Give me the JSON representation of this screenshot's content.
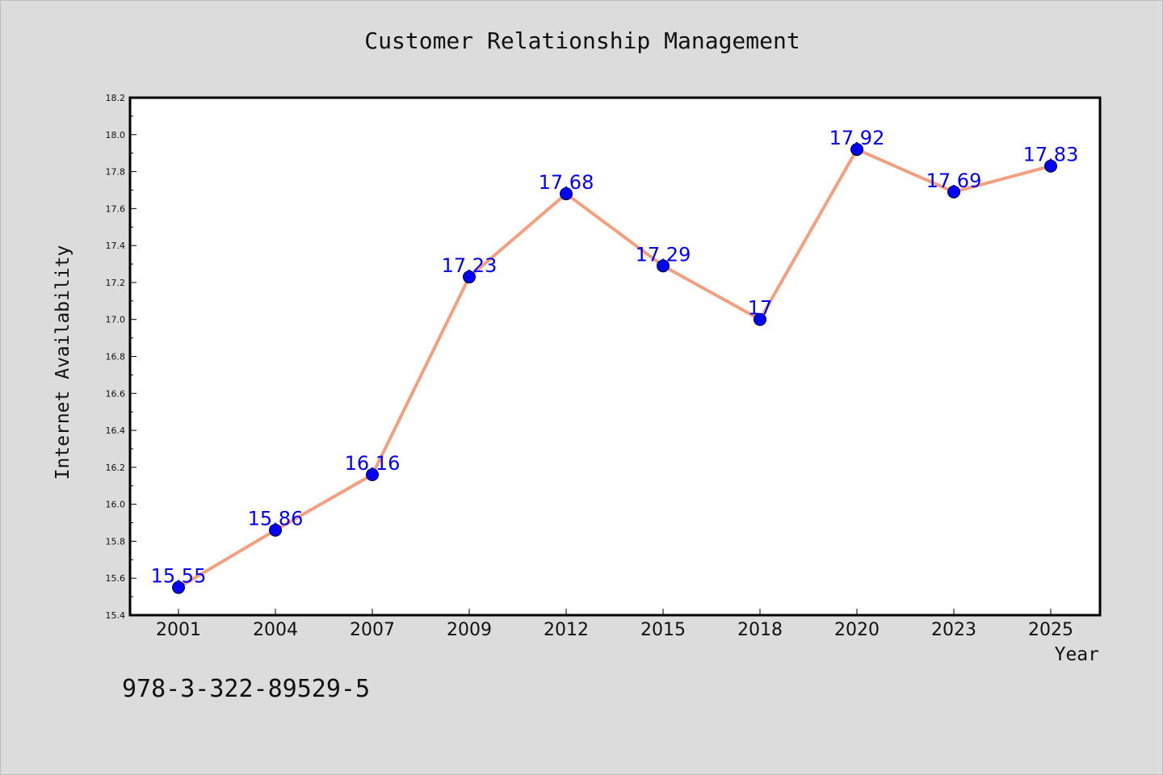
{
  "chart_data": {
    "type": "line",
    "title": "Customer Relationship Management",
    "xlabel": "Year",
    "ylabel": "Internet Availability",
    "categories": [
      "2001",
      "2004",
      "2007",
      "2009",
      "2012",
      "2015",
      "2018",
      "2020",
      "2023",
      "2025"
    ],
    "series": [
      {
        "values": [
          15.55,
          15.86,
          16.16,
          17.23,
          17.68,
          17.29,
          17.0,
          17.92,
          17.69,
          17.83
        ],
        "value_labels": [
          "15.55",
          "15.86",
          "16.16",
          "17.23",
          "17.68",
          "17.29",
          "17",
          "17.92",
          "17.69",
          "17.83"
        ],
        "line_color": "#f4a07e",
        "marker_color": "#0000ff",
        "label_color": "#0000ff"
      }
    ],
    "ylim": [
      15.4,
      18.2
    ],
    "yticks": [
      "15.4",
      "15.6",
      "15.8",
      "16.0",
      "16.2",
      "16.4",
      "16.6",
      "16.8",
      "17.0",
      "17.2",
      "17.4",
      "17.6",
      "17.8",
      "18.0",
      "18.2"
    ],
    "grid": false,
    "legend": "none"
  },
  "footnote": "978-3-322-89529-5",
  "colors": {
    "background": "#dcdcdc",
    "plot_background": "#ffffff",
    "axis": "#000000"
  }
}
